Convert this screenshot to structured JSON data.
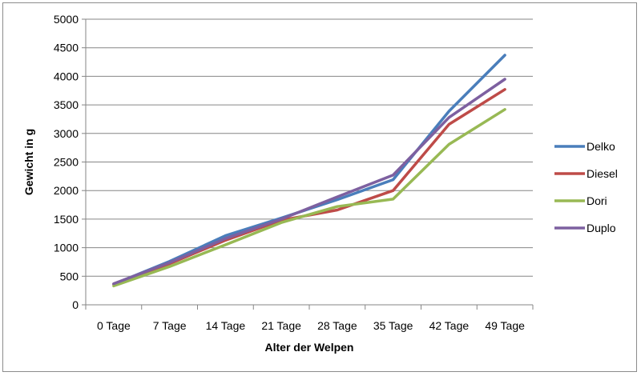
{
  "chart_data": {
    "type": "line",
    "title": "",
    "xlabel": "Alter der Welpen",
    "ylabel": "Gewicht in g",
    "categories": [
      "0 Tage",
      "7 Tage",
      "14 Tage",
      "21 Tage",
      "28 Tage",
      "35 Tage",
      "42 Tage",
      "49 Tage"
    ],
    "ylim": [
      0,
      5000
    ],
    "yticks": [
      0,
      500,
      1000,
      1500,
      2000,
      2500,
      3000,
      3500,
      4000,
      4500,
      5000
    ],
    "grid": true,
    "legend_position": "right",
    "series": [
      {
        "name": "Delko",
        "color": "#4a7ebb",
        "values": [
          360,
          760,
          1210,
          1520,
          1840,
          2190,
          3390,
          4370
        ]
      },
      {
        "name": "Diesel",
        "color": "#be4b48",
        "values": [
          360,
          720,
          1130,
          1480,
          1660,
          2000,
          3160,
          3770
        ]
      },
      {
        "name": "Dori",
        "color": "#98b954",
        "values": [
          330,
          670,
          1050,
          1440,
          1720,
          1850,
          2810,
          3420
        ]
      },
      {
        "name": "Duplo",
        "color": "#7d60a0",
        "values": [
          370,
          740,
          1160,
          1500,
          1890,
          2270,
          3280,
          3950
        ]
      }
    ]
  }
}
